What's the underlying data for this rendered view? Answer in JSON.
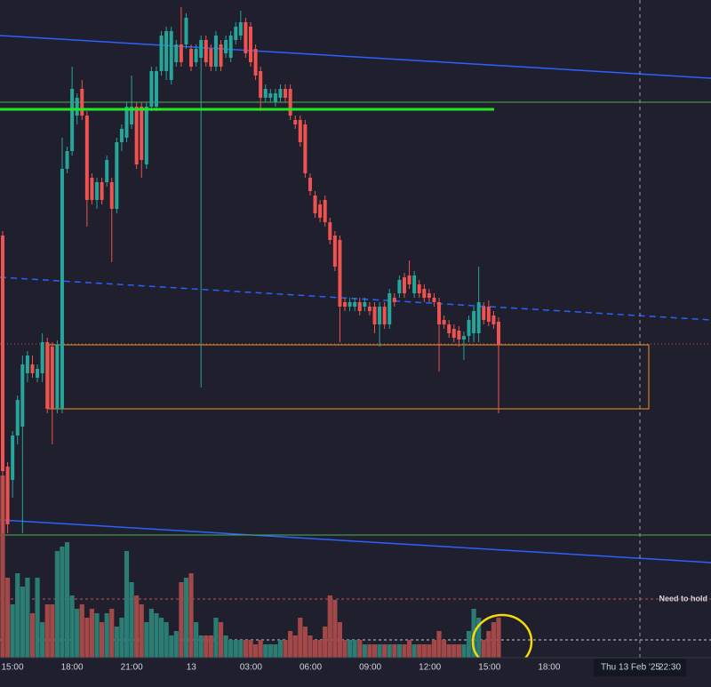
{
  "chart_data": {
    "type": "candlestick",
    "ylim": [
      0,
      740
    ],
    "vlim": [
      0,
      740
    ],
    "up_color": "#26a69a",
    "down_color": "#ef5350",
    "up_volume_color": "#2b7d74",
    "down_volume_color": "#a34848",
    "candles": [
      [
        475,
        480,
        140,
        210
      ],
      [
        215,
        220,
        140,
        150
      ],
      [
        200,
        255,
        180,
        250
      ],
      [
        250,
        295,
        240,
        290
      ],
      [
        260,
        340,
        140,
        330
      ],
      [
        320,
        345,
        310,
        340
      ],
      [
        330,
        340,
        315,
        320
      ],
      [
        315,
        330,
        310,
        325
      ],
      [
        320,
        365,
        310,
        355
      ],
      [
        355,
        360,
        275,
        280
      ],
      [
        350,
        355,
        240,
        280
      ],
      [
        280,
        357,
        275,
        352
      ],
      [
        280,
        585,
        275,
        550
      ],
      [
        550,
        575,
        545,
        570
      ],
      [
        570,
        665,
        565,
        640
      ],
      [
        610,
        635,
        600,
        630
      ],
      [
        640,
        650,
        605,
        610
      ],
      [
        610,
        615,
        485,
        515
      ],
      [
        540,
        545,
        510,
        515
      ],
      [
        515,
        540,
        505,
        535
      ],
      [
        535,
        540,
        510,
        515
      ],
      [
        535,
        565,
        530,
        560
      ],
      [
        535,
        540,
        445,
        505
      ],
      [
        505,
        585,
        500,
        580
      ],
      [
        580,
        600,
        570,
        595
      ],
      [
        585,
        625,
        580,
        620
      ],
      [
        600,
        655,
        595,
        620
      ],
      [
        620,
        625,
        550,
        555
      ],
      [
        620,
        625,
        540,
        560
      ],
      [
        555,
        625,
        550,
        620
      ],
      [
        620,
        665,
        615,
        660
      ],
      [
        620,
        665,
        615,
        660
      ],
      [
        660,
        705,
        655,
        700
      ],
      [
        660,
        710,
        650,
        705
      ],
      [
        650,
        710,
        645,
        705
      ],
      [
        670,
        695,
        665,
        690
      ],
      [
        690,
        732,
        665,
        670
      ],
      [
        690,
        725,
        685,
        720
      ],
      [
        685,
        690,
        660,
        665
      ],
      [
        670,
        690,
        665,
        685
      ],
      [
        675,
        700,
        304,
        695
      ],
      [
        695,
        700,
        665,
        670
      ],
      [
        685,
        690,
        660,
        665
      ],
      [
        665,
        705,
        660,
        700
      ],
      [
        690,
        695,
        660,
        665
      ],
      [
        680,
        700,
        675,
        695
      ],
      [
        675,
        705,
        670,
        700
      ],
      [
        695,
        715,
        690,
        710
      ],
      [
        700,
        728,
        695,
        715
      ],
      [
        715,
        720,
        675,
        680
      ],
      [
        710,
        715,
        665,
        670
      ],
      [
        685,
        690,
        650,
        655
      ],
      [
        660,
        665,
        615,
        630
      ],
      [
        630,
        645,
        625,
        640
      ],
      [
        630,
        640,
        625,
        635
      ],
      [
        625,
        640,
        620,
        635
      ],
      [
        630,
        645,
        625,
        640
      ],
      [
        640,
        645,
        625,
        630
      ],
      [
        640,
        645,
        605,
        610
      ],
      [
        605,
        610,
        595,
        600
      ],
      [
        605,
        610,
        575,
        580
      ],
      [
        600,
        605,
        540,
        545
      ],
      [
        540,
        545,
        520,
        525
      ],
      [
        520,
        525,
        495,
        500
      ],
      [
        510,
        515,
        490,
        495
      ],
      [
        515,
        520,
        485,
        490
      ],
      [
        490,
        495,
        465,
        470
      ],
      [
        475,
        480,
        435,
        440
      ],
      [
        470,
        475,
        355,
        395
      ],
      [
        400,
        405,
        390,
        395
      ],
      [
        395,
        405,
        390,
        400
      ],
      [
        395,
        405,
        390,
        400
      ],
      [
        400,
        405,
        385,
        390
      ],
      [
        395,
        405,
        390,
        400
      ],
      [
        395,
        400,
        385,
        390
      ],
      [
        395,
        400,
        365,
        375
      ],
      [
        375,
        400,
        350,
        395
      ],
      [
        395,
        400,
        370,
        375
      ],
      [
        375,
        415,
        370,
        410
      ],
      [
        405,
        410,
        395,
        400
      ],
      [
        410,
        430,
        405,
        425
      ],
      [
        428,
        433,
        405,
        410
      ],
      [
        430,
        447,
        415,
        420
      ],
      [
        410,
        435,
        405,
        430
      ],
      [
        420,
        425,
        405,
        410
      ],
      [
        415,
        420,
        400,
        405
      ],
      [
        410,
        415,
        400,
        405
      ],
      [
        405,
        410,
        395,
        400
      ],
      [
        400,
        405,
        322,
        375
      ],
      [
        380,
        385,
        370,
        375
      ],
      [
        375,
        380,
        360,
        365
      ],
      [
        370,
        375,
        355,
        360
      ],
      [
        368,
        373,
        350,
        358
      ],
      [
        358,
        367,
        335,
        362
      ],
      [
        362,
        385,
        355,
        380
      ],
      [
        365,
        395,
        355,
        390
      ],
      [
        365,
        440,
        355,
        400
      ],
      [
        395,
        400,
        375,
        380
      ],
      [
        395,
        402,
        373,
        378
      ],
      [
        385,
        390,
        370,
        375
      ],
      [
        378,
        383,
        275,
        352
      ]
    ],
    "volume": [
      205,
      90,
      60,
      95,
      80,
      90,
      50,
      90,
      40,
      60,
      60,
      120,
      125,
      130,
      70,
      55,
      60,
      45,
      55,
      50,
      40,
      50,
      55,
      35,
      45,
      120,
      85,
      70,
      60,
      40,
      55,
      50,
      45,
      40,
      25,
      30,
      85,
      90,
      95,
      40,
      25,
      25,
      25,
      45,
      40,
      25,
      20,
      20,
      20,
      20,
      20,
      15,
      20,
      15,
      15,
      15,
      20,
      20,
      30,
      25,
      45,
      35,
      25,
      20,
      20,
      35,
      70,
      65,
      40,
      20,
      20,
      20,
      20,
      15,
      15,
      15,
      15,
      15,
      15,
      15,
      15,
      15,
      20,
      15,
      15,
      15,
      15,
      20,
      30,
      20,
      15,
      15,
      15,
      15,
      30,
      55,
      45,
      20,
      30,
      40,
      45
    ],
    "time_labels": [
      "15:00",
      "18:00",
      "21:00",
      "13",
      "03:00",
      "06:00",
      "09:00",
      "12:00",
      "15:00",
      "18:00"
    ],
    "crosshair_date": "Thu 13 Feb '25",
    "crosshair_time": "22:30",
    "annotation": "Need to hold"
  }
}
